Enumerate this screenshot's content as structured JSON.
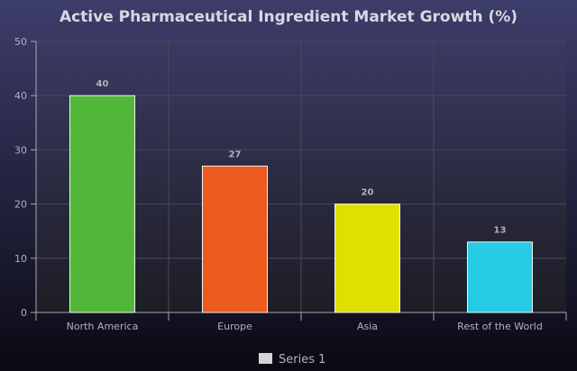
{
  "chart_data": {
    "type": "bar",
    "title": "Active Pharmaceutical Ingredient Market Growth (%)",
    "xlabel": "",
    "ylabel": "",
    "categories": [
      "North America",
      "Europe",
      "Asia",
      "Rest of the World"
    ],
    "series": [
      {
        "name": "Series 1",
        "values": [
          40,
          27,
          20,
          13
        ],
        "colors": [
          "#52b738",
          "#ec5a1e",
          "#dfe000",
          "#26cbe5"
        ]
      }
    ],
    "ylim": [
      0,
      50
    ],
    "yticks": [
      0,
      10,
      20,
      30,
      40,
      50
    ],
    "grid": true,
    "legend": "bottom-center",
    "data_labels": true
  },
  "colors": {
    "background_top": "#3d3d6b",
    "background_bottom": "#0a0a14",
    "plot_top": "#3a3a62",
    "plot_bottom": "#1d1d24",
    "grid": "#4a4a5a",
    "axis": "#a6a6b4",
    "title": "#d8d8e2",
    "tick_label": "#b2b2be",
    "data_label": "#b2b2b8",
    "bar_stroke": "#f2f2f2",
    "legend_swatch": "#d4d4d4"
  }
}
